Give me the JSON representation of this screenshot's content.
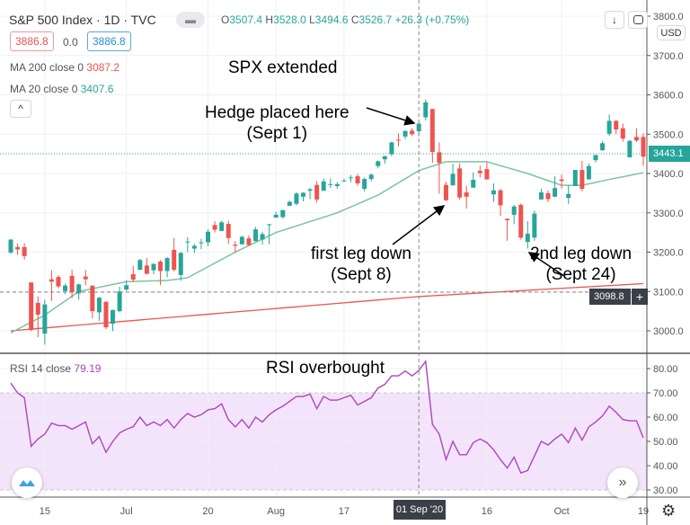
{
  "header": {
    "symbol": "S&P 500 Index · 1D · TVC",
    "open_label": "O",
    "open": "3507.4",
    "high_label": "H",
    "high": "3528.0",
    "low_label": "L",
    "low": "3494.6",
    "close_label": "C",
    "close": "3526.7",
    "change": "+26.3 (+0.75%)",
    "sell_price": "3886.8",
    "spread": "0.0",
    "buy_price": "3886.8",
    "currency": "USD"
  },
  "indicators": {
    "ma200": {
      "label": "MA 200 close 0",
      "value": "3087.2",
      "color": "#ef5350"
    },
    "ma20": {
      "label": "MA 20 close 0",
      "value": "3407.6",
      "color": "#66bb6a"
    },
    "rsi": {
      "label": "RSI 14 close",
      "value": "79.19",
      "color": "#ab47bc"
    }
  },
  "annotations": {
    "spx": "SPX extended",
    "hedge1": "Hedge placed here",
    "hedge2": "(Sept 1)",
    "leg1a": "first leg down",
    "leg1b": "(Sept 8)",
    "leg2a": "2nd leg down",
    "leg2b": "(Sept 24)",
    "rsi": "RSI overbought"
  },
  "price_labels": {
    "last": "3443.1",
    "crosshair": "3098.8",
    "crosshair_date": "01 Sep '20"
  },
  "colors": {
    "up": "#26a69a",
    "down": "#ef5350",
    "rsi_band": "#f3e3fb"
  },
  "icons": {
    "collapse": "chevron-up-icon",
    "down": "arrow-down-icon",
    "fullscreen": "fullscreen-icon",
    "logo": "tradingview-logo-icon",
    "scroll": "double-chevron-right-icon",
    "settings": "gear-icon"
  },
  "chart_data": {
    "type": "candlestick",
    "price_axis": {
      "ticks": [
        3000,
        3100,
        3200,
        3300,
        3400,
        3500,
        3600,
        3700,
        3800
      ],
      "range": [
        2920,
        3805
      ]
    },
    "rsi_axis": {
      "ticks": [
        30,
        40,
        50,
        60,
        70,
        80
      ],
      "range": [
        24,
        87
      ],
      "band": [
        30,
        70
      ]
    },
    "x_ticks": [
      {
        "label": "15",
        "date": "06-15"
      },
      {
        "label": "Jul",
        "date": "07-01"
      },
      {
        "label": "20",
        "date": "07-20"
      },
      {
        "label": "Aug",
        "date": "08-03"
      },
      {
        "label": "17",
        "date": "08-17"
      },
      {
        "label": "16",
        "date": "09-16"
      },
      {
        "label": "Oct",
        "date": "10-01"
      },
      {
        "label": "19",
        "date": "10-19"
      }
    ],
    "crosshair_date": "09-01",
    "candles": [
      [
        "06-08",
        3199,
        3233,
        3196,
        3232
      ],
      [
        "06-09",
        3213,
        3222,
        3193,
        3207
      ],
      [
        "06-10",
        3213,
        3223,
        3181,
        3190
      ],
      [
        "06-11",
        3123,
        3123,
        2999,
        3002
      ],
      [
        "06-12",
        3071,
        3088,
        2984,
        3041
      ],
      [
        "06-15",
        2993,
        3079,
        2965,
        3067
      ],
      [
        "06-16",
        3131,
        3154,
        3076,
        3125
      ],
      [
        "06-17",
        3137,
        3141,
        3108,
        3113
      ],
      [
        "06-18",
        3101,
        3120,
        3093,
        3115
      ],
      [
        "06-19",
        3140,
        3155,
        3083,
        3098
      ],
      [
        "06-22",
        3095,
        3120,
        3079,
        3118
      ],
      [
        "06-23",
        3138,
        3155,
        3116,
        3131
      ],
      [
        "06-24",
        3115,
        3115,
        3032,
        3050
      ],
      [
        "06-25",
        3047,
        3086,
        3025,
        3084
      ],
      [
        "06-26",
        3074,
        3074,
        3004,
        3009
      ],
      [
        "06-29",
        3018,
        3054,
        2999,
        3053
      ],
      [
        "06-30",
        3050,
        3112,
        3047,
        3100
      ],
      [
        "07-01",
        3105,
        3129,
        3101,
        3116
      ],
      [
        "07-02",
        3144,
        3165,
        3124,
        3130
      ],
      [
        "07-06",
        3155,
        3183,
        3155,
        3180
      ],
      [
        "07-07",
        3166,
        3185,
        3143,
        3145
      ],
      [
        "07-08",
        3154,
        3172,
        3144,
        3170
      ],
      [
        "07-09",
        3176,
        3180,
        3116,
        3152
      ],
      [
        "07-10",
        3152,
        3187,
        3136,
        3185
      ],
      [
        "07-13",
        3206,
        3236,
        3151,
        3155
      ],
      [
        "07-14",
        3142,
        3201,
        3127,
        3198
      ],
      [
        "07-15",
        3226,
        3238,
        3200,
        3227
      ],
      [
        "07-16",
        3209,
        3221,
        3198,
        3216
      ],
      [
        "07-17",
        3224,
        3234,
        3208,
        3225
      ],
      [
        "07-20",
        3225,
        3258,
        3215,
        3252
      ],
      [
        "07-21",
        3269,
        3278,
        3250,
        3257
      ],
      [
        "07-22",
        3254,
        3280,
        3253,
        3276
      ],
      [
        "07-23",
        3272,
        3280,
        3221,
        3236
      ],
      [
        "07-24",
        3219,
        3228,
        3198,
        3216
      ],
      [
        "07-27",
        3220,
        3242,
        3220,
        3239
      ],
      [
        "07-28",
        3235,
        3243,
        3216,
        3218
      ],
      [
        "07-29",
        3228,
        3264,
        3228,
        3258
      ],
      [
        "07-30",
        3232,
        3251,
        3219,
        3246
      ],
      [
        "07-31",
        3270,
        3272,
        3220,
        3271
      ],
      [
        "08-03",
        3288,
        3303,
        3288,
        3295
      ],
      [
        "08-04",
        3289,
        3307,
        3286,
        3307
      ],
      [
        "08-05",
        3318,
        3331,
        3318,
        3328
      ],
      [
        "08-06",
        3323,
        3352,
        3319,
        3349
      ],
      [
        "08-07",
        3341,
        3352,
        3329,
        3351
      ],
      [
        "08-10",
        3356,
        3364,
        3335,
        3360
      ],
      [
        "08-11",
        3371,
        3381,
        3326,
        3334
      ],
      [
        "08-12",
        3356,
        3387,
        3356,
        3380
      ],
      [
        "08-13",
        3372,
        3387,
        3363,
        3373
      ],
      [
        "08-14",
        3368,
        3378,
        3362,
        3373
      ],
      [
        "08-17",
        3380,
        3387,
        3379,
        3382
      ],
      [
        "08-18",
        3388,
        3396,
        3378,
        3390
      ],
      [
        "08-19",
        3393,
        3399,
        3369,
        3375
      ],
      [
        "08-20",
        3361,
        3390,
        3354,
        3386
      ],
      [
        "08-21",
        3386,
        3400,
        3380,
        3397
      ],
      [
        "08-24",
        3419,
        3433,
        3413,
        3431
      ],
      [
        "08-25",
        3436,
        3445,
        3425,
        3444
      ],
      [
        "08-26",
        3449,
        3481,
        3444,
        3479
      ],
      [
        "08-27",
        3486,
        3502,
        3469,
        3485
      ],
      [
        "08-28",
        3494,
        3510,
        3487,
        3508
      ],
      [
        "08-31",
        3509,
        3515,
        3495,
        3500
      ],
      [
        "09-01",
        3507.4,
        3528,
        3494.6,
        3526.7
      ],
      [
        "09-02",
        3543,
        3588,
        3535,
        3581
      ],
      [
        "09-03",
        3564,
        3564,
        3427,
        3455
      ],
      [
        "09-04",
        3454,
        3479,
        3349,
        3427
      ],
      [
        "09-08",
        3371,
        3379,
        3330,
        3332
      ],
      [
        "09-09",
        3370,
        3425,
        3369,
        3399
      ],
      [
        "09-10",
        3413,
        3426,
        3333,
        3339
      ],
      [
        "09-11",
        3352,
        3369,
        3311,
        3341
      ],
      [
        "09-14",
        3364,
        3403,
        3364,
        3384
      ],
      [
        "09-15",
        3407,
        3420,
        3390,
        3401
      ],
      [
        "09-16",
        3411,
        3429,
        3385,
        3385
      ],
      [
        "09-17",
        3347,
        3375,
        3328,
        3357
      ],
      [
        "09-18",
        3357,
        3362,
        3292,
        3319
      ],
      [
        "09-21",
        3285,
        3285,
        3229,
        3281
      ],
      [
        "09-22",
        3295,
        3320,
        3271,
        3316
      ],
      [
        "09-23",
        3320,
        3324,
        3232,
        3237
      ],
      [
        "09-24",
        3226,
        3279,
        3209,
        3247
      ],
      [
        "09-25",
        3237,
        3306,
        3229,
        3298
      ],
      [
        "09-28",
        3334,
        3361,
        3334,
        3352
      ],
      [
        "09-29",
        3350,
        3357,
        3327,
        3335
      ],
      [
        "09-30",
        3341,
        3393,
        3340,
        3363
      ],
      [
        "10-01",
        3385,
        3397,
        3362,
        3381
      ],
      [
        "10-02",
        3338,
        3370,
        3323,
        3348
      ],
      [
        "10-05",
        3368,
        3409,
        3368,
        3409
      ],
      [
        "10-06",
        3409,
        3432,
        3355,
        3361
      ],
      [
        "10-07",
        3385,
        3426,
        3385,
        3419
      ],
      [
        "10-08",
        3434,
        3447,
        3428,
        3447
      ],
      [
        "10-09",
        3459,
        3482,
        3458,
        3477
      ],
      [
        "10-12",
        3501,
        3550,
        3496,
        3534
      ],
      [
        "10-13",
        3534,
        3535,
        3500,
        3512
      ],
      [
        "10-14",
        3515,
        3527,
        3481,
        3489
      ],
      [
        "10-15",
        3441,
        3485,
        3441,
        3483
      ],
      [
        "10-16",
        3493,
        3515,
        3480,
        3484
      ],
      [
        "10-19",
        3493,
        3502,
        3420,
        3443
      ]
    ],
    "ma20": [
      [
        "06-08",
        2995
      ],
      [
        "06-15",
        3040
      ],
      [
        "06-22",
        3100
      ],
      [
        "07-01",
        3125
      ],
      [
        "07-10",
        3128
      ],
      [
        "07-15",
        3135
      ],
      [
        "07-24",
        3200
      ],
      [
        "08-03",
        3250
      ],
      [
        "08-14",
        3300
      ],
      [
        "08-24",
        3345
      ],
      [
        "09-01",
        3407.6
      ],
      [
        "09-08",
        3430
      ],
      [
        "09-16",
        3430
      ],
      [
        "09-24",
        3400
      ],
      [
        "10-01",
        3370
      ],
      [
        "10-06",
        3370
      ],
      [
        "10-12",
        3385
      ],
      [
        "10-19",
        3402
      ]
    ],
    "ma200": [
      [
        "06-08",
        3000
      ],
      [
        "09-01",
        3087.2
      ],
      [
        "10-19",
        3120
      ]
    ],
    "rsi": [
      74,
      70,
      68,
      48,
      51,
      53,
      57.5,
      56.5,
      56.5,
      55,
      56.5,
      58,
      49,
      52,
      45.5,
      50,
      53.5,
      55,
      56,
      60,
      56.5,
      58,
      56.5,
      59,
      55.5,
      59,
      61.5,
      60,
      61,
      63,
      63.5,
      65.5,
      59,
      56,
      59,
      55.5,
      60,
      58,
      61,
      63,
      64.5,
      66.5,
      68.5,
      68.5,
      69.5,
      63.5,
      68.5,
      67,
      67,
      68,
      69,
      65,
      66.5,
      68,
      72,
      73.5,
      77,
      77,
      79,
      77,
      79.19,
      83,
      57,
      53,
      42.5,
      50,
      44.5,
      44.5,
      49.5,
      51,
      49.5,
      46.5,
      42.5,
      39,
      43.5,
      37,
      38,
      44,
      50,
      48.5,
      51,
      53,
      49.5,
      55.5,
      50.5,
      56,
      58,
      60.5,
      64.5,
      62,
      59,
      58.5,
      58.5,
      51.5
    ]
  }
}
